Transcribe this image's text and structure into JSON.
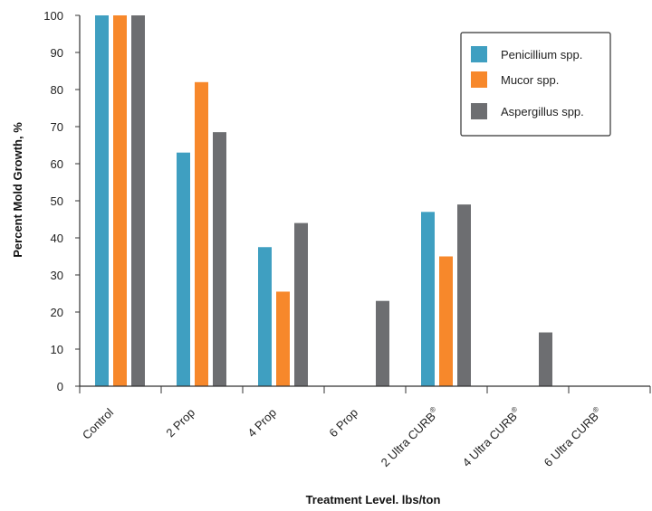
{
  "chart_data": {
    "type": "bar",
    "categories": [
      "Control",
      "2 Prop",
      "4 Prop",
      "6 Prop",
      "2 Ultra CURB",
      "4 Ultra CURB",
      "6 Ultra CURB"
    ],
    "category_superscripts": [
      "",
      "",
      "",
      "",
      "®",
      "®",
      "®"
    ],
    "series": [
      {
        "name": "Penicillium spp.",
        "color": "#3f9fc1",
        "values": [
          100,
          63,
          37.5,
          0,
          47,
          0,
          0
        ]
      },
      {
        "name": "Mucor spp.",
        "color": "#f7882b",
        "values": [
          100,
          82,
          25.5,
          0,
          35,
          0,
          0
        ]
      },
      {
        "name": "Aspergillus spp.",
        "color": "#6d6e71",
        "values": [
          100,
          68.5,
          44,
          23,
          49,
          14.5,
          0
        ]
      }
    ],
    "xlabel": "Treatment Level. lbs/ton",
    "ylabel": "Percent Mold Growth, %",
    "ylim": [
      0,
      100
    ],
    "yticks": [
      0,
      10,
      20,
      30,
      40,
      50,
      60,
      70,
      80,
      90,
      100
    ],
    "grid": false,
    "legend_position": "top-right"
  }
}
